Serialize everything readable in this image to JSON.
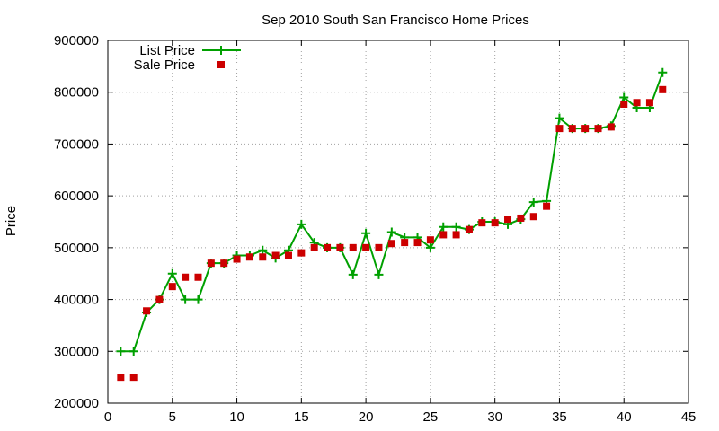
{
  "chart_data": {
    "type": "line",
    "title": "Sep 2010 South San Francisco Home Prices",
    "xlabel": "",
    "ylabel": "Price",
    "xlim": [
      0,
      45
    ],
    "ylim": [
      200000,
      900000
    ],
    "xticks": [
      0,
      5,
      10,
      15,
      20,
      25,
      30,
      35,
      40,
      45
    ],
    "yticks": [
      200000,
      300000,
      400000,
      500000,
      600000,
      700000,
      800000,
      900000
    ],
    "grid": true,
    "legend_position": "top-left",
    "x": [
      1,
      2,
      3,
      4,
      5,
      6,
      7,
      8,
      9,
      10,
      11,
      12,
      13,
      14,
      15,
      16,
      17,
      18,
      19,
      20,
      21,
      22,
      23,
      24,
      25,
      26,
      27,
      28,
      29,
      30,
      31,
      32,
      33,
      34,
      35,
      36,
      37,
      38,
      39,
      40,
      41,
      42,
      43
    ],
    "series": [
      {
        "name": "List Price",
        "style": "line-plus",
        "color": "#00a000",
        "values": [
          300000,
          300000,
          375000,
          400000,
          450000,
          400000,
          400000,
          470000,
          470000,
          485000,
          485000,
          495000,
          480000,
          495000,
          545000,
          510000,
          500000,
          500000,
          448000,
          528000,
          448000,
          530000,
          520000,
          520000,
          500000,
          540000,
          540000,
          535000,
          550000,
          550000,
          545000,
          555000,
          588000,
          590000,
          750000,
          730000,
          730000,
          730000,
          735000,
          790000,
          770000,
          770000,
          838000
        ]
      },
      {
        "name": "Sale Price",
        "style": "square",
        "color": "#cc0000",
        "values": [
          250000,
          250000,
          378000,
          400000,
          425000,
          443000,
          443000,
          470000,
          470000,
          478000,
          482000,
          482000,
          485000,
          485000,
          490000,
          500000,
          500000,
          500000,
          500000,
          500000,
          500000,
          508000,
          510000,
          510000,
          515000,
          525000,
          525000,
          535000,
          548000,
          548000,
          555000,
          557000,
          560000,
          580000,
          730000,
          730000,
          730000,
          730000,
          733000,
          777000,
          780000,
          780000,
          805000
        ]
      }
    ]
  }
}
